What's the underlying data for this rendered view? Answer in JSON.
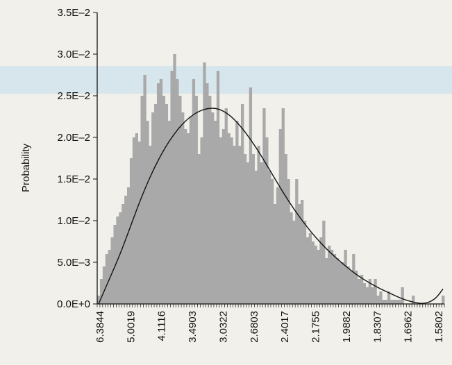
{
  "chart_data": {
    "type": "bar",
    "title": "",
    "xlabel": "",
    "ylabel": "Probability",
    "ylim": [
      0,
      0.035
    ],
    "y_tick_labels": [
      "0.0E+0",
      "5.0E–3",
      "1.0E–2",
      "1.5E–2",
      "2.0E–2",
      "2.5E–2",
      "3.0E–2",
      "3.5E–2"
    ],
    "y_tick_values": [
      0,
      0.005,
      0.01,
      0.015,
      0.02,
      0.025,
      0.03,
      0.035
    ],
    "x_tick_labels": [
      "6.3844",
      "5.0019",
      "4.1116",
      "3.4903",
      "3.0322",
      "2.6803",
      "2.4017",
      "2.1755",
      "1.9882",
      "1.8307",
      "1.6962",
      "1.5802"
    ],
    "bar_color": "#a9a9a9",
    "curve_color": "#111111",
    "values": [
      0.001,
      0.003,
      0.0045,
      0.006,
      0.0065,
      0.008,
      0.0095,
      0.0105,
      0.011,
      0.012,
      0.013,
      0.014,
      0.0175,
      0.02,
      0.0205,
      0.0195,
      0.025,
      0.0275,
      0.022,
      0.019,
      0.023,
      0.024,
      0.0265,
      0.027,
      0.025,
      0.024,
      0.022,
      0.028,
      0.03,
      0.027,
      0.025,
      0.023,
      0.021,
      0.0205,
      0.0225,
      0.027,
      0.025,
      0.018,
      0.02,
      0.029,
      0.0265,
      0.025,
      0.023,
      0.022,
      0.028,
      0.02,
      0.021,
      0.0235,
      0.0205,
      0.02,
      0.019,
      0.022,
      0.019,
      0.024,
      0.018,
      0.017,
      0.026,
      0.018,
      0.016,
      0.019,
      0.017,
      0.0235,
      0.02,
      0.016,
      0.015,
      0.012,
      0.014,
      0.021,
      0.0235,
      0.018,
      0.015,
      0.011,
      0.01,
      0.015,
      0.012,
      0.0125,
      0.01,
      0.008,
      0.0085,
      0.0075,
      0.007,
      0.0065,
      0.008,
      0.01,
      0.0055,
      0.007,
      0.0065,
      0.006,
      0.0055,
      0.005,
      0.005,
      0.0065,
      0.0045,
      0.004,
      0.006,
      0.004,
      0.003,
      0.0035,
      0.0025,
      0.002,
      0.003,
      0.002,
      0.003,
      0.001,
      0.0015,
      0.0005,
      0.0005,
      0.0015,
      0.0005,
      0.0005,
      0.0005,
      0.0005,
      0.002,
      0.0,
      0.0,
      0.0,
      0.001,
      0.0,
      0.0,
      0.0,
      0.0,
      0.0,
      0.0,
      0.0,
      0.0,
      0.0,
      0.0,
      0.001
    ],
    "curve_points": [
      [
        0,
        0.0
      ],
      [
        4,
        0.003
      ],
      [
        8,
        0.006
      ],
      [
        12,
        0.0095
      ],
      [
        16,
        0.013
      ],
      [
        20,
        0.016
      ],
      [
        24,
        0.0185
      ],
      [
        28,
        0.0205
      ],
      [
        32,
        0.022
      ],
      [
        36,
        0.023
      ],
      [
        40,
        0.0235
      ],
      [
        44,
        0.0235
      ],
      [
        48,
        0.0228
      ],
      [
        52,
        0.0215
      ],
      [
        56,
        0.0198
      ],
      [
        60,
        0.0178
      ],
      [
        64,
        0.0156
      ],
      [
        68,
        0.0134
      ],
      [
        72,
        0.0114
      ],
      [
        76,
        0.0096
      ],
      [
        80,
        0.008
      ],
      [
        84,
        0.0066
      ],
      [
        88,
        0.0054
      ],
      [
        92,
        0.0043
      ],
      [
        96,
        0.0033
      ],
      [
        100,
        0.0025
      ],
      [
        104,
        0.0018
      ],
      [
        108,
        0.0012
      ],
      [
        112,
        0.0006
      ],
      [
        116,
        0.0002
      ],
      [
        120,
        0.0
      ],
      [
        124,
        0.0005
      ],
      [
        127,
        0.0018
      ]
    ],
    "grid": false,
    "legend": "none"
  }
}
